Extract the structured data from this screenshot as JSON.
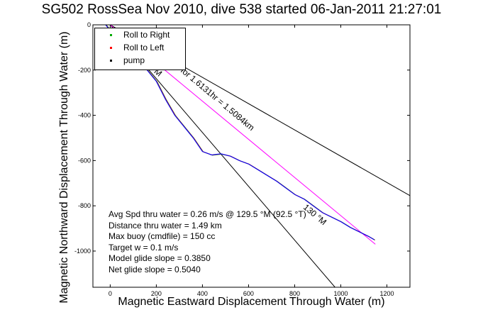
{
  "chart_data": {
    "type": "line",
    "title": "SG502 RossSea Nov 2010, dive 538 started 06-Jan-2011 21:27:01",
    "xlabel": "Magnetic Eastward Displacement Through Water (m)",
    "ylabel": "Magnetic Northward Displacement Through Water (m)",
    "xlim": [
      -75,
      1300
    ],
    "ylim": [
      -1160,
      0
    ],
    "xticks": [
      0,
      200,
      400,
      600,
      800,
      1000,
      1200
    ],
    "yticks": [
      0,
      -200,
      -400,
      -600,
      -800,
      -1000
    ],
    "xtick_labels": [
      "0",
      "200",
      "400",
      "600",
      "800",
      "1000",
      "1200"
    ],
    "ytick_labels": [
      "0",
      "-200",
      "-400",
      "-600",
      "-800",
      "-1000"
    ],
    "grid": false,
    "legend_position": "top-left",
    "series": [
      {
        "name": "Roll to Right",
        "color": "#00aa00",
        "x": [
          -20,
          0,
          40,
          80,
          120,
          160,
          200,
          240,
          280,
          320,
          360,
          400,
          440,
          480,
          520,
          560,
          600,
          640,
          680,
          720,
          760,
          800,
          840,
          880,
          920,
          960,
          1000,
          1040,
          1080,
          1120,
          1145
        ],
        "y": [
          0,
          -25,
          -60,
          -100,
          -150,
          -200,
          -250,
          -330,
          -400,
          -450,
          -500,
          -560,
          -575,
          -570,
          -580,
          -600,
          -615,
          -640,
          -665,
          -690,
          -720,
          -750,
          -770,
          -800,
          -830,
          -850,
          -870,
          -895,
          -915,
          -935,
          -950
        ]
      },
      {
        "name": "Roll to Left",
        "color": "#ff0000",
        "x": [
          -20,
          0,
          40,
          80,
          120,
          160,
          200,
          240,
          280,
          320,
          360,
          400,
          440,
          480,
          520,
          560,
          600,
          640,
          680,
          720,
          760,
          800,
          840,
          880,
          920,
          960,
          1000,
          1040,
          1080,
          1120,
          1145
        ],
        "y": [
          0,
          -25,
          -60,
          -100,
          -150,
          -200,
          -250,
          -330,
          -400,
          -450,
          -500,
          -560,
          -575,
          -570,
          -580,
          -600,
          -615,
          -640,
          -665,
          -690,
          -720,
          -750,
          -770,
          -800,
          -830,
          -850,
          -870,
          -895,
          -915,
          -935,
          -950
        ]
      },
      {
        "name": "pump",
        "color": "#0000ff",
        "x": [
          -20,
          0,
          40,
          80,
          120,
          160,
          200,
          240,
          280,
          320,
          360,
          400,
          440,
          480,
          520,
          560,
          600,
          640,
          680,
          720,
          760,
          800,
          840,
          880,
          920,
          960,
          1000,
          1040,
          1080,
          1120,
          1145
        ],
        "y": [
          0,
          -25,
          -60,
          -100,
          -150,
          -200,
          -250,
          -330,
          -400,
          -450,
          -500,
          -560,
          -575,
          -570,
          -580,
          -600,
          -615,
          -640,
          -665,
          -690,
          -720,
          -750,
          -770,
          -800,
          -830,
          -850,
          -870,
          -895,
          -915,
          -935,
          -950
        ]
      }
    ],
    "reference_lines": [
      {
        "color": "#000000",
        "x": [
          0,
          1300
        ],
        "y": [
          0,
          -755
        ]
      },
      {
        "color": "#000000",
        "x": [
          0,
          975
        ],
        "y": [
          0,
          -1160
        ]
      },
      {
        "color": "#ff00ff",
        "x": [
          0,
          1150
        ],
        "y": [
          0,
          -970
        ]
      }
    ],
    "annotations": [
      {
        "text": "m/s for 1.6131hr = 1.5084km",
        "x": 250,
        "y": -160,
        "angle": 40
      },
      {
        "text": "M",
        "x": 188,
        "y": -210,
        "angle": 40
      },
      {
        "text": "130 °M",
        "x": 835,
        "y": -810,
        "angle": 40
      }
    ],
    "stats": [
      "Avg Spd thru water =  0.26 m/s @ 129.5  °M (92.5 °T)",
      "Distance thru water =  1.49 km",
      "Max buoy (cmdfile) = 150 cc",
      "Target w = 0.1 m/s",
      "Model glide slope = 0.3850",
      "Net glide slope = 0.5040"
    ]
  }
}
